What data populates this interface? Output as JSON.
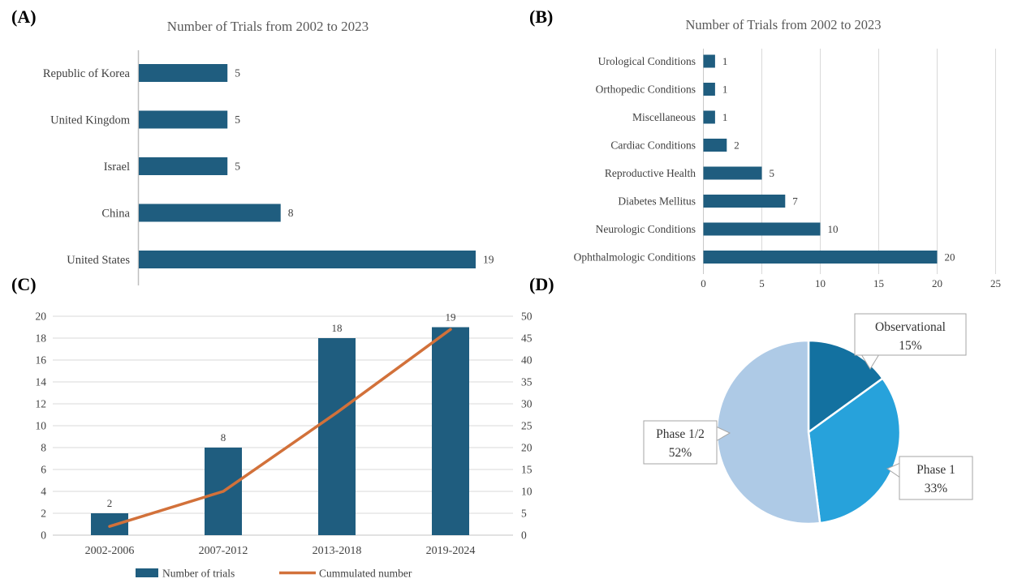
{
  "figure": {
    "panels": [
      {
        "label": "(A)"
      },
      {
        "label": "(B)"
      },
      {
        "label": "(C)"
      },
      {
        "label": "(D)"
      }
    ]
  },
  "colors": {
    "bar": "#1f5d7f",
    "line": "#d2713a",
    "pie_dark": "#1371a0",
    "pie_medium": "#27a2db",
    "pie_light": "#aecae6",
    "gridline": "#d9d9d9",
    "axis_line": "#bfbfbf",
    "text": "#404040",
    "title": "#595959",
    "callout_border": "#a6a6a6",
    "background": "#ffffff"
  },
  "chart_data": [
    {
      "panel": "A",
      "type": "bar",
      "orientation": "horizontal",
      "title": "Number of Trials from 2002 to 2023",
      "categories": [
        "Republic of Korea",
        "United Kingdom",
        "Israel",
        "China",
        "United States"
      ],
      "values": [
        5,
        5,
        5,
        8,
        19
      ],
      "xlim": [
        0,
        19
      ],
      "data_labels": true,
      "grid": "none",
      "legend_position": "none"
    },
    {
      "panel": "B",
      "type": "bar",
      "orientation": "horizontal",
      "title": "Number of Trials from 2002 to 2023",
      "categories": [
        "Urological Conditions",
        "Orthopedic Conditions",
        "Miscellaneous",
        "Cardiac Conditions",
        "Reproductive Health",
        "Diabetes Mellitus",
        "Neurologic Conditions",
        "Ophthalmologic Conditions"
      ],
      "values": [
        1,
        1,
        1,
        2,
        5,
        7,
        10,
        20
      ],
      "xticks": [
        0,
        5,
        10,
        15,
        20,
        25
      ],
      "xlim": [
        0,
        25
      ],
      "data_labels": true,
      "grid": "vertical",
      "legend_position": "none"
    },
    {
      "panel": "C",
      "type": "combo-bar-line",
      "title": "",
      "categories": [
        "2002-2006",
        "2007-2012",
        "2013-2018",
        "2019-2024"
      ],
      "series": [
        {
          "name": "Number of trials",
          "type": "bar",
          "axis": "left",
          "values": [
            2,
            8,
            18,
            19
          ]
        },
        {
          "name": "Cummulated number",
          "type": "line",
          "axis": "right",
          "values": [
            2,
            10,
            28,
            47
          ]
        }
      ],
      "left_axis": {
        "min": 0,
        "max": 20,
        "step": 2
      },
      "right_axis": {
        "min": 0,
        "max": 50,
        "step": 5
      },
      "data_labels": true,
      "grid": "horizontal",
      "legend_position": "bottom"
    },
    {
      "panel": "D",
      "type": "pie",
      "title": "",
      "start_angle_deg": 0,
      "direction": "clockwise",
      "slices": [
        {
          "label": "Observational",
          "pct": 15,
          "color_key": "pie_dark"
        },
        {
          "label": "Phase 1",
          "pct": 33,
          "color_key": "pie_medium"
        },
        {
          "label": "Phase 1/2",
          "pct": 52,
          "color_key": "pie_light"
        }
      ],
      "legend_position": "callouts"
    }
  ]
}
